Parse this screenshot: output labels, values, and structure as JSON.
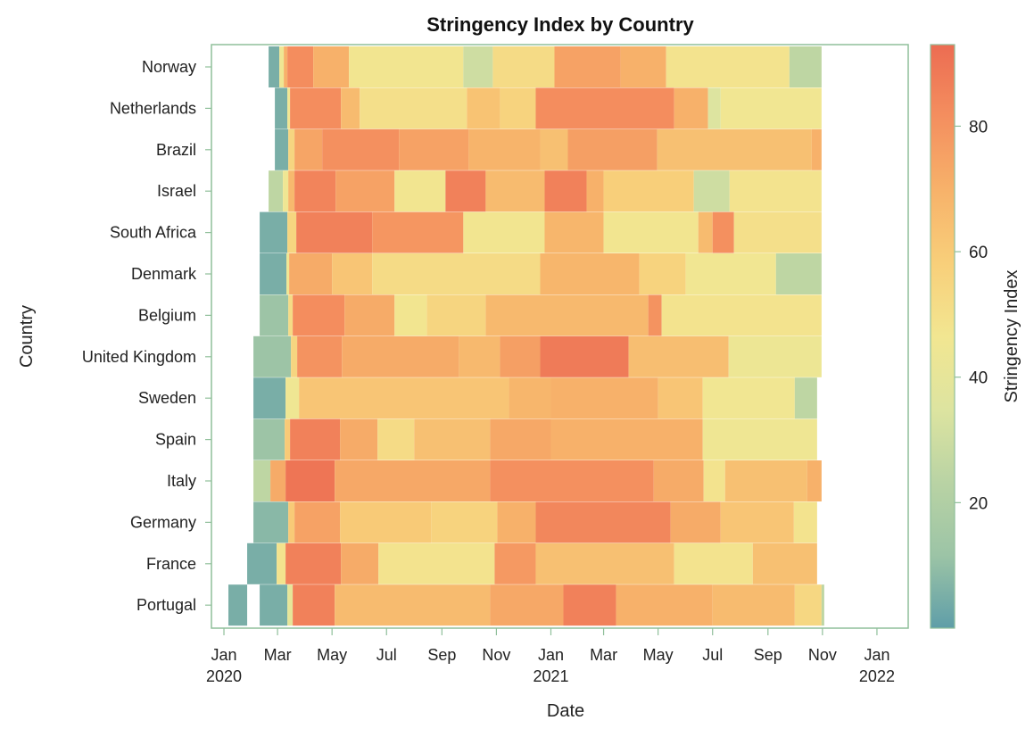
{
  "colors": {
    "scale": [
      "#5f9ea8",
      "#9cc4a6",
      "#b9d3a4",
      "#dde4a0",
      "#f2e691",
      "#f8cf7a",
      "#f7b26a",
      "#f48f5f",
      "#ec6c52"
    ],
    "frame": "#8fbf9a",
    "background": "#ffffff"
  },
  "chart_data": {
    "type": "heatmap",
    "title": "Stringency Index by Country",
    "xlabel": "Date",
    "ylabel": "Country",
    "colorbar_label": "Stringency Index",
    "colorbar_range": [
      0,
      93
    ],
    "colorbar_ticks": [
      20,
      40,
      60,
      80
    ],
    "x_range": [
      "2019-12-18",
      "2022-02-05"
    ],
    "x_ticks": [
      {
        "date": "2020-01-01",
        "label1": "Jan",
        "label2": "2020"
      },
      {
        "date": "2020-03-01",
        "label1": "Mar",
        "label2": ""
      },
      {
        "date": "2020-05-01",
        "label1": "May",
        "label2": ""
      },
      {
        "date": "2020-07-01",
        "label1": "Jul",
        "label2": ""
      },
      {
        "date": "2020-09-01",
        "label1": "Sep",
        "label2": ""
      },
      {
        "date": "2020-11-01",
        "label1": "Nov",
        "label2": ""
      },
      {
        "date": "2021-01-01",
        "label1": "Jan",
        "label2": "2021"
      },
      {
        "date": "2021-03-01",
        "label1": "Mar",
        "label2": ""
      },
      {
        "date": "2021-05-01",
        "label1": "May",
        "label2": ""
      },
      {
        "date": "2021-07-01",
        "label1": "Jul",
        "label2": ""
      },
      {
        "date": "2021-09-01",
        "label1": "Sep",
        "label2": ""
      },
      {
        "date": "2021-11-01",
        "label1": "Nov",
        "label2": ""
      },
      {
        "date": "2022-01-01",
        "label1": "Jan",
        "label2": "2022"
      }
    ],
    "countries": [
      {
        "name": "Norway",
        "segments": [
          [
            "2020-02-20",
            "2020-03-03",
            5
          ],
          [
            "2020-03-03",
            "2020-03-08",
            45
          ],
          [
            "2020-03-08",
            "2020-03-12",
            70
          ],
          [
            "2020-03-12",
            "2020-04-10",
            82
          ],
          [
            "2020-04-10",
            "2020-05-20",
            70
          ],
          [
            "2020-05-20",
            "2020-09-25",
            47
          ],
          [
            "2020-09-25",
            "2020-10-28",
            30
          ],
          [
            "2020-10-28",
            "2021-01-05",
            52
          ],
          [
            "2021-01-05",
            "2021-03-20",
            75
          ],
          [
            "2021-03-20",
            "2021-05-10",
            70
          ],
          [
            "2021-05-10",
            "2021-09-25",
            48
          ],
          [
            "2021-09-25",
            "2021-10-31",
            25
          ]
        ]
      },
      {
        "name": "Netherlands",
        "segments": [
          [
            "2020-02-27",
            "2020-03-12",
            5
          ],
          [
            "2020-03-12",
            "2020-03-15",
            45
          ],
          [
            "2020-03-15",
            "2020-05-11",
            82
          ],
          [
            "2020-05-11",
            "2020-06-01",
            66
          ],
          [
            "2020-06-01",
            "2020-09-29",
            50
          ],
          [
            "2020-09-29",
            "2020-11-05",
            63
          ],
          [
            "2020-11-05",
            "2020-12-15",
            56
          ],
          [
            "2020-12-15",
            "2021-05-19",
            82
          ],
          [
            "2021-05-19",
            "2021-06-26",
            70
          ],
          [
            "2021-06-26",
            "2021-07-10",
            35
          ],
          [
            "2021-07-10",
            "2021-10-31",
            46
          ]
        ]
      },
      {
        "name": "Brazil",
        "segments": [
          [
            "2020-02-27",
            "2020-03-13",
            5
          ],
          [
            "2020-03-13",
            "2020-03-20",
            55
          ],
          [
            "2020-03-20",
            "2020-04-20",
            74
          ],
          [
            "2020-04-20",
            "2020-07-15",
            81
          ],
          [
            "2020-07-15",
            "2020-10-01",
            75
          ],
          [
            "2020-10-01",
            "2020-12-20",
            69
          ],
          [
            "2020-12-20",
            "2021-01-20",
            64
          ],
          [
            "2021-01-20",
            "2021-04-30",
            76
          ],
          [
            "2021-04-30",
            "2021-10-20",
            64
          ],
          [
            "2021-10-20",
            "2021-10-31",
            70
          ]
        ]
      },
      {
        "name": "Israel",
        "segments": [
          [
            "2020-02-20",
            "2020-03-07",
            25
          ],
          [
            "2020-03-07",
            "2020-03-13",
            45
          ],
          [
            "2020-03-13",
            "2020-03-20",
            67
          ],
          [
            "2020-03-20",
            "2020-05-05",
            85
          ],
          [
            "2020-05-05",
            "2020-07-10",
            75
          ],
          [
            "2020-07-10",
            "2020-09-05",
            47
          ],
          [
            "2020-09-05",
            "2020-10-20",
            86
          ],
          [
            "2020-10-20",
            "2020-12-25",
            66
          ],
          [
            "2020-12-25",
            "2021-02-10",
            86
          ],
          [
            "2021-02-10",
            "2021-03-01",
            70
          ],
          [
            "2021-03-01",
            "2021-06-10",
            58
          ],
          [
            "2021-06-10",
            "2021-07-20",
            30
          ],
          [
            "2021-07-20",
            "2021-10-31",
            48
          ]
        ]
      },
      {
        "name": "South Africa",
        "segments": [
          [
            "2020-02-10",
            "2020-03-12",
            5
          ],
          [
            "2020-03-12",
            "2020-03-22",
            55
          ],
          [
            "2020-03-22",
            "2020-06-15",
            86
          ],
          [
            "2020-06-15",
            "2020-09-25",
            79
          ],
          [
            "2020-09-25",
            "2020-12-25",
            47
          ],
          [
            "2020-12-25",
            "2021-03-01",
            68
          ],
          [
            "2021-03-01",
            "2021-06-15",
            47
          ],
          [
            "2021-06-15",
            "2021-07-01",
            66
          ],
          [
            "2021-07-01",
            "2021-07-25",
            81
          ],
          [
            "2021-07-25",
            "2021-10-31",
            50
          ]
        ]
      },
      {
        "name": "Denmark",
        "segments": [
          [
            "2020-02-10",
            "2020-03-11",
            5
          ],
          [
            "2020-03-11",
            "2020-03-14",
            45
          ],
          [
            "2020-03-14",
            "2020-05-01",
            72
          ],
          [
            "2020-05-01",
            "2020-06-15",
            62
          ],
          [
            "2020-06-15",
            "2020-12-20",
            52
          ],
          [
            "2020-12-20",
            "2021-04-10",
            68
          ],
          [
            "2021-04-10",
            "2021-06-01",
            56
          ],
          [
            "2021-06-01",
            "2021-09-10",
            46
          ],
          [
            "2021-09-10",
            "2021-10-31",
            25
          ]
        ]
      },
      {
        "name": "Belgium",
        "segments": [
          [
            "2020-02-10",
            "2020-03-13",
            12
          ],
          [
            "2020-03-13",
            "2020-03-18",
            52
          ],
          [
            "2020-03-18",
            "2020-05-15",
            82
          ],
          [
            "2020-05-15",
            "2020-07-10",
            72
          ],
          [
            "2020-07-10",
            "2020-08-15",
            47
          ],
          [
            "2020-08-15",
            "2020-10-20",
            55
          ],
          [
            "2020-10-20",
            "2021-04-20",
            67
          ],
          [
            "2021-04-20",
            "2021-05-05",
            80
          ],
          [
            "2021-05-05",
            "2021-10-31",
            48
          ]
        ]
      },
      {
        "name": "United Kingdom",
        "segments": [
          [
            "2020-02-03",
            "2020-03-16",
            12
          ],
          [
            "2020-03-16",
            "2020-03-23",
            55
          ],
          [
            "2020-03-23",
            "2020-05-12",
            80
          ],
          [
            "2020-05-12",
            "2020-09-20",
            72
          ],
          [
            "2020-09-20",
            "2020-11-05",
            67
          ],
          [
            "2020-11-05",
            "2020-12-20",
            76
          ],
          [
            "2020-12-20",
            "2021-03-29",
            88
          ],
          [
            "2021-03-29",
            "2021-07-19",
            65
          ],
          [
            "2021-07-19",
            "2021-10-31",
            44
          ]
        ]
      },
      {
        "name": "Sweden",
        "segments": [
          [
            "2020-02-03",
            "2020-03-10",
            5
          ],
          [
            "2020-03-10",
            "2020-03-25",
            45
          ],
          [
            "2020-03-25",
            "2020-11-15",
            62
          ],
          [
            "2020-11-15",
            "2021-01-01",
            68
          ],
          [
            "2021-01-01",
            "2021-05-01",
            70
          ],
          [
            "2021-05-01",
            "2021-06-20",
            62
          ],
          [
            "2021-06-20",
            "2021-10-01",
            46
          ],
          [
            "2021-10-01",
            "2021-10-26",
            25
          ]
        ]
      },
      {
        "name": "Spain",
        "segments": [
          [
            "2020-02-03",
            "2020-03-09",
            12
          ],
          [
            "2020-03-09",
            "2020-03-15",
            60
          ],
          [
            "2020-03-15",
            "2020-05-10",
            86
          ],
          [
            "2020-05-10",
            "2020-06-21",
            72
          ],
          [
            "2020-06-21",
            "2020-08-01",
            52
          ],
          [
            "2020-08-01",
            "2020-10-25",
            64
          ],
          [
            "2020-10-25",
            "2021-01-01",
            73
          ],
          [
            "2021-01-01",
            "2021-06-20",
            70
          ],
          [
            "2021-06-20",
            "2021-10-26",
            45
          ]
        ]
      },
      {
        "name": "Italy",
        "segments": [
          [
            "2020-02-03",
            "2020-02-22",
            25
          ],
          [
            "2020-02-22",
            "2020-03-10",
            72
          ],
          [
            "2020-03-10",
            "2020-05-04",
            90
          ],
          [
            "2020-05-04",
            "2020-10-25",
            73
          ],
          [
            "2020-10-25",
            "2021-04-26",
            81
          ],
          [
            "2021-04-26",
            "2021-06-21",
            72
          ],
          [
            "2021-06-21",
            "2021-07-15",
            48
          ],
          [
            "2021-07-15",
            "2021-10-15",
            64
          ],
          [
            "2021-10-15",
            "2021-10-31",
            70
          ]
        ]
      },
      {
        "name": "Germany",
        "segments": [
          [
            "2020-02-03",
            "2020-03-13",
            8
          ],
          [
            "2020-03-13",
            "2020-03-20",
            60
          ],
          [
            "2020-03-20",
            "2020-05-10",
            75
          ],
          [
            "2020-05-10",
            "2020-08-20",
            60
          ],
          [
            "2020-08-20",
            "2020-11-02",
            56
          ],
          [
            "2020-11-02",
            "2020-12-15",
            70
          ],
          [
            "2020-12-15",
            "2021-05-15",
            84
          ],
          [
            "2021-05-15",
            "2021-07-10",
            72
          ],
          [
            "2021-07-10",
            "2021-09-30",
            62
          ],
          [
            "2021-09-30",
            "2021-10-26",
            48
          ]
        ]
      },
      {
        "name": "France",
        "segments": [
          [
            "2020-01-27",
            "2020-02-29",
            5
          ],
          [
            "2020-02-29",
            "2020-03-10",
            48
          ],
          [
            "2020-03-10",
            "2020-05-11",
            86
          ],
          [
            "2020-05-11",
            "2020-06-22",
            72
          ],
          [
            "2020-06-22",
            "2020-10-30",
            48
          ],
          [
            "2020-10-30",
            "2020-12-15",
            78
          ],
          [
            "2020-12-15",
            "2021-05-19",
            64
          ],
          [
            "2021-05-19",
            "2021-08-15",
            48
          ],
          [
            "2021-08-15",
            "2021-10-26",
            64
          ]
        ]
      },
      {
        "name": "Portugal",
        "segments": [
          [
            "2020-01-06",
            "2020-01-27",
            5
          ],
          [
            "2020-02-10",
            "2020-03-12",
            5
          ],
          [
            "2020-03-12",
            "2020-03-18",
            40
          ],
          [
            "2020-03-18",
            "2020-05-04",
            86
          ],
          [
            "2020-05-04",
            "2020-10-25",
            66
          ],
          [
            "2020-10-25",
            "2021-01-15",
            73
          ],
          [
            "2021-01-15",
            "2021-03-15",
            86
          ],
          [
            "2021-03-15",
            "2021-07-01",
            70
          ],
          [
            "2021-07-01",
            "2021-10-01",
            66
          ],
          [
            "2021-10-01",
            "2021-10-31",
            54
          ],
          [
            "2021-10-31",
            "2021-11-03",
            25
          ]
        ]
      }
    ]
  }
}
